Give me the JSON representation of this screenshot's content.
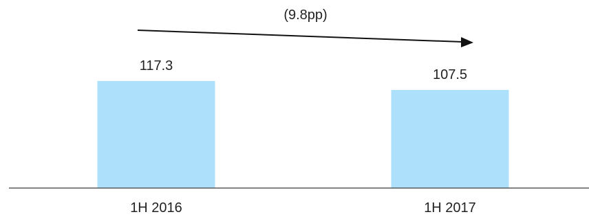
{
  "chart_data": {
    "type": "bar",
    "categories": [
      "1H 2016",
      "1H 2017"
    ],
    "values": [
      117.3,
      107.5
    ],
    "value_labels": [
      "117.3",
      "107.5"
    ],
    "title": "",
    "xlabel": "",
    "ylabel": "",
    "ylim": [
      0,
      117.3
    ],
    "grid": false,
    "legend": "none",
    "annotation": {
      "text": "(9.8pp)",
      "from": "1H 2016",
      "to": "1H 2017"
    },
    "colors": {
      "bar": "#ade1fb",
      "axis": "#5a5a5a",
      "arrow": "#111111",
      "text": "#222222"
    }
  }
}
